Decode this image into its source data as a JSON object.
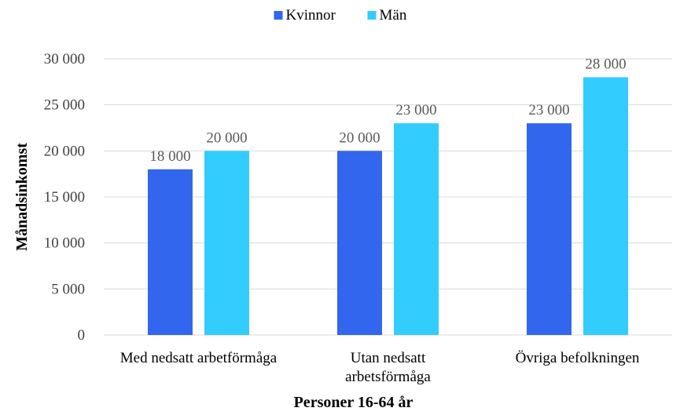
{
  "chart_data": {
    "type": "bar",
    "categories": [
      [
        "Med nedsatt arbetförmåga"
      ],
      [
        "Utan nedsatt",
        "arbetsförmåga"
      ],
      [
        "Övriga befolkningen"
      ]
    ],
    "series": [
      {
        "name": "Kvinnor",
        "values": [
          18000,
          20000,
          23000
        ],
        "labels": [
          "18 000",
          "20 000",
          "23 000"
        ],
        "color": "#3366ee"
      },
      {
        "name": "Män",
        "values": [
          20000,
          23000,
          28000
        ],
        "labels": [
          "20 000",
          "23 000",
          "28 000"
        ],
        "color": "#33ccff"
      }
    ],
    "yticks": [
      0,
      5000,
      10000,
      15000,
      20000,
      25000,
      30000
    ],
    "ytick_labels": [
      "0",
      "5 000",
      "10 000",
      "15 000",
      "20 000",
      "25 000",
      "30 000"
    ],
    "ylim": [
      0,
      30000
    ],
    "xlabel": "Personer 16-64 år",
    "ylabel": "Månadsinkomst",
    "legend_position": "top",
    "grid": true,
    "gridline_color": "#d9d9d9"
  }
}
